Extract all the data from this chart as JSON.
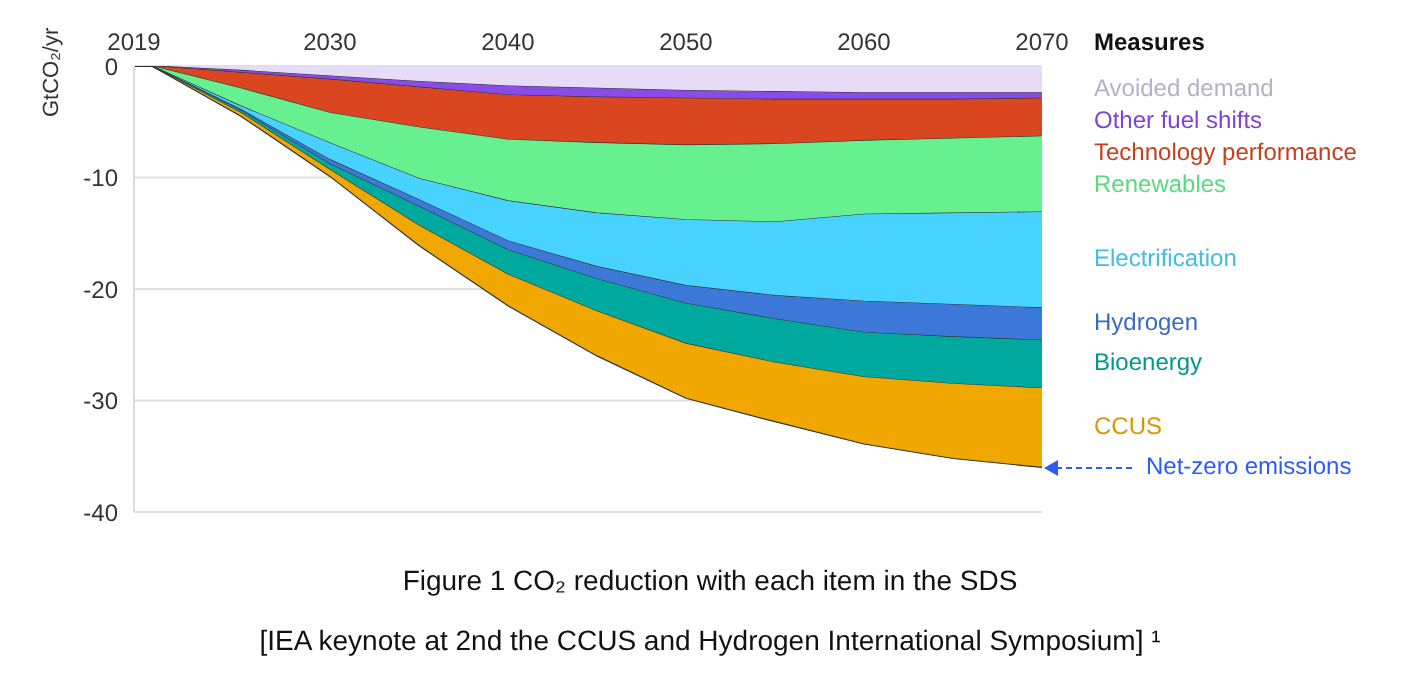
{
  "chart_data": {
    "type": "area",
    "stacked": true,
    "x": [
      2019,
      2020,
      2025,
      2030,
      2035,
      2040,
      2045,
      2050,
      2055,
      2060,
      2065,
      2070
    ],
    "xlim": [
      2019,
      2070
    ],
    "xticks": [
      2019,
      2030,
      2040,
      2050,
      2060,
      2070
    ],
    "ylim": [
      -40,
      0
    ],
    "yticks": [
      0,
      -10,
      -20,
      -30,
      -40
    ],
    "ylabel": "GtCO₂/yr",
    "legend_title": "Measures",
    "legend": "right",
    "grid": "y",
    "series": [
      {
        "name": "Avoided demand",
        "color": "#e6dcf8",
        "values": [
          0,
          0,
          -0.4,
          -0.9,
          -1.4,
          -1.8,
          -2.0,
          -2.2,
          -2.3,
          -2.4,
          -2.4,
          -2.4
        ]
      },
      {
        "name": "Other fuel shifts",
        "color": "#8a4ce8",
        "values": [
          0,
          0,
          -0.2,
          -0.3,
          -0.5,
          -0.8,
          -0.8,
          -0.7,
          -0.7,
          -0.6,
          -0.6,
          -0.5
        ]
      },
      {
        "name": "Technology performance",
        "color": "#d94620",
        "values": [
          0,
          0,
          -1.4,
          -3.0,
          -3.6,
          -4.0,
          -4.1,
          -4.2,
          -4.0,
          -3.7,
          -3.5,
          -3.4
        ]
      },
      {
        "name": "Renewables",
        "color": "#66f08f",
        "values": [
          0,
          0,
          -1.6,
          -2.7,
          -4.6,
          -5.5,
          -6.3,
          -6.7,
          -7.0,
          -6.6,
          -6.7,
          -6.8
        ]
      },
      {
        "name": "Electrification",
        "color": "#48d2ff",
        "values": [
          0,
          0,
          -0.3,
          -1.5,
          -1.9,
          -3.6,
          -4.8,
          -5.9,
          -6.6,
          -7.8,
          -8.2,
          -8.6
        ]
      },
      {
        "name": "Hydrogen",
        "color": "#3c78d8",
        "values": [
          0,
          0,
          -0.1,
          -0.4,
          -0.6,
          -0.8,
          -1.1,
          -1.6,
          -2.1,
          -2.8,
          -2.9,
          -2.9
        ]
      },
      {
        "name": "Bioenergy",
        "color": "#00a99d",
        "values": [
          0,
          0,
          -0.2,
          -0.5,
          -1.7,
          -2.2,
          -2.9,
          -3.6,
          -3.9,
          -4.0,
          -4.2,
          -4.3
        ]
      },
      {
        "name": "CCUS",
        "color": "#f0a800",
        "values": [
          0,
          0,
          -0.3,
          -0.6,
          -1.8,
          -2.8,
          -4.0,
          -4.9,
          -5.3,
          -6.0,
          -6.7,
          -7.1
        ]
      }
    ],
    "annotations": [
      {
        "text": "Net-zero emissions",
        "x": 2070,
        "y": -36
      },
      "Figure 1 CO₂ reduction with each item in the SDS",
      "[IEA keynote at 2nd the CCUS and Hydrogen International Symposium] ¹"
    ]
  }
}
